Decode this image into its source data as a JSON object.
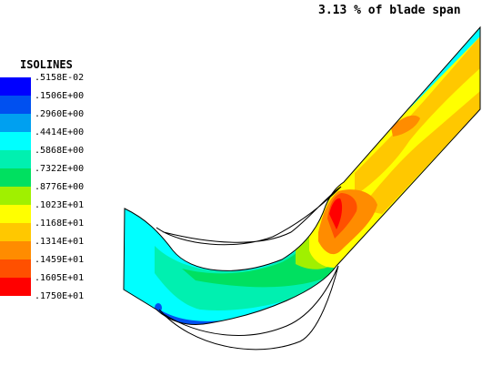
{
  "title": "3.13 % of blade span",
  "legend": {
    "heading": "ISOLINES",
    "entries": [
      {
        "label": ".5158E-02",
        "color": "#0000ff"
      },
      {
        "label": ".1506E+00",
        "color": "#0050f0"
      },
      {
        "label": ".2960E+00",
        "color": "#00a0f0"
      },
      {
        "label": ".4414E+00",
        "color": "#00ffff"
      },
      {
        "label": ".5868E+00",
        "color": "#00f0b0"
      },
      {
        "label": ".7322E+00",
        "color": "#00e060"
      },
      {
        "label": ".8776E+00",
        "color": "#a0f000"
      },
      {
        "label": ".1023E+01",
        "color": "#ffff00"
      },
      {
        "label": ".1168E+01",
        "color": "#ffc800"
      },
      {
        "label": ".1314E+01",
        "color": "#ff8c00"
      },
      {
        "label": ".1459E+01",
        "color": "#ff5000"
      },
      {
        "label": ".1605E+01",
        "color": "#ff0000"
      },
      {
        "label": ".1750E+01",
        "color": ""
      }
    ]
  }
}
